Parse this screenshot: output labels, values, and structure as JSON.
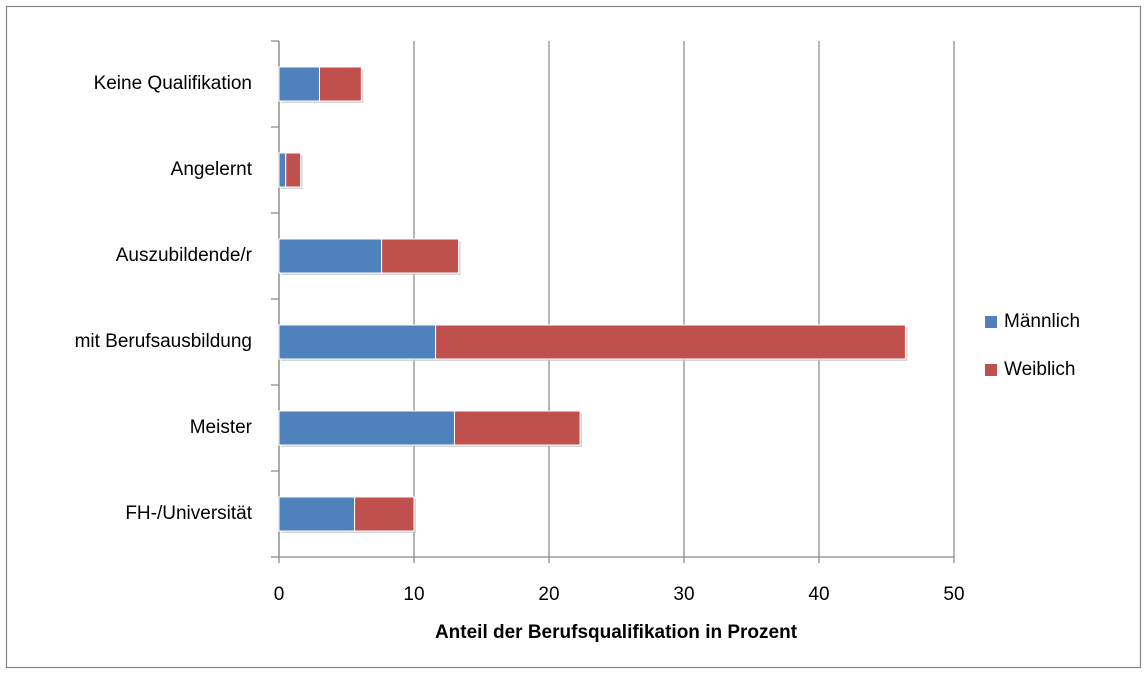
{
  "chart_data": {
    "type": "stacked_barh",
    "x_label": "Anteil der Berufsqualifikation in Prozent",
    "categories": [
      "Keine Qualifikation",
      "Angelernt",
      "Auszubildende/r",
      "mit Berufsausbildung",
      "Meister",
      "FH-/Universität"
    ],
    "series": [
      {
        "name": "Männlich",
        "color": "#4f81bd",
        "values": [
          3.0,
          0.5,
          7.6,
          11.6,
          13.0,
          5.6
        ]
      },
      {
        "name": "Weiblich",
        "color": "#c0504d",
        "values": [
          3.1,
          1.1,
          5.7,
          34.8,
          9.3,
          4.4
        ]
      }
    ],
    "xlim": [
      0,
      50
    ],
    "xticks": [
      0,
      10,
      20,
      30,
      40,
      50
    ],
    "grid": true,
    "legend": "right"
  }
}
